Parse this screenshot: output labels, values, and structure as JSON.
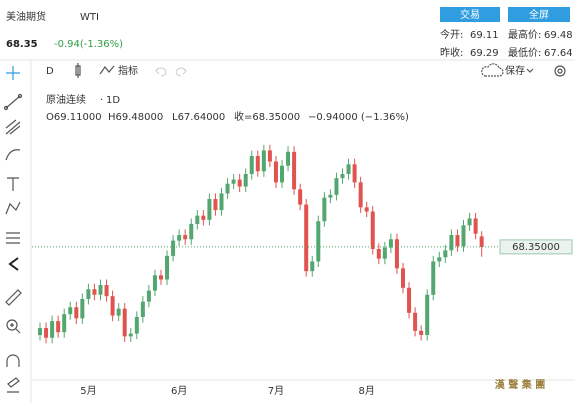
{
  "header": {
    "title": "美油期货",
    "symbol": "WTI",
    "price": "68.35",
    "change": "-0.94(-1.36%)",
    "trade_button": "交易",
    "fullscreen_button": "全屏",
    "stats": [
      {
        "label": "今开:",
        "value": "69.11"
      },
      {
        "label": "最高价:",
        "value": "69.48"
      },
      {
        "label": "昨收:",
        "value": "69.29"
      },
      {
        "label": "最低价:",
        "value": "67.64"
      }
    ]
  },
  "toolbar": {
    "interval": "D",
    "indicators": "指标",
    "save": "保存"
  },
  "legend": {
    "name": "原油连续",
    "interval": "1D",
    "open": "O69.11000",
    "high": "H69.48000",
    "low": "L67.64000",
    "close": "收=68.35000",
    "change": "−0.94000 (−1.36%)"
  },
  "watermark": "漢 聲 集 團",
  "chart_data": {
    "type": "candlestick",
    "up_color": "#53a66f",
    "down_color": "#e0534f",
    "ylim": [
      58.9,
      79.8
    ],
    "last_price_label": "68.35000",
    "categories": [
      null,
      null,
      null,
      null,
      null,
      null,
      null,
      null,
      "5月",
      null,
      null,
      null,
      null,
      null,
      null,
      null,
      null,
      null,
      null,
      null,
      null,
      null,
      null,
      "6月",
      null,
      null,
      null,
      null,
      null,
      null,
      null,
      null,
      null,
      null,
      null,
      null,
      null,
      null,
      null,
      "7月",
      null,
      null,
      null,
      null,
      null,
      null,
      null,
      null,
      null,
      null,
      null,
      null,
      null,
      null,
      "8月",
      null,
      null,
      null,
      null,
      null,
      null,
      null,
      null,
      null,
      null,
      null,
      null,
      null,
      null,
      null,
      null,
      null,
      null,
      null
    ],
    "open": [
      62.0,
      62.5,
      61.8,
      63.0,
      62.2,
      63.5,
      64.0,
      63.2,
      64.6,
      65.3,
      64.9,
      65.6,
      64.8,
      63.4,
      63.9,
      61.9,
      62.1,
      63.3,
      64.4,
      65.2,
      66.3,
      66.0,
      67.7,
      68.8,
      69.2,
      68.9,
      70.0,
      70.6,
      70.3,
      71.8,
      71.0,
      72.2,
      72.9,
      73.2,
      72.7,
      73.6,
      74.9,
      73.8,
      75.3,
      74.5,
      73.0,
      74.2,
      75.2,
      72.5,
      71.4,
      66.6,
      67.3,
      70.2,
      71.9,
      72.1,
      73.3,
      73.6,
      74.3,
      73.0,
      71.2,
      70.9,
      68.2,
      67.5,
      68.3,
      68.9,
      66.8,
      65.4,
      63.6,
      62.3,
      62.0,
      64.9,
      67.3,
      67.6,
      68.1,
      69.2,
      68.4,
      69.9,
      70.4,
      69.11
    ],
    "high": [
      62.9,
      62.9,
      63.4,
      63.4,
      63.9,
      64.4,
      64.4,
      65.0,
      65.7,
      65.7,
      66.0,
      66.0,
      65.2,
      64.3,
      64.3,
      62.5,
      63.7,
      64.8,
      65.6,
      66.7,
      66.7,
      68.1,
      69.2,
      69.6,
      69.6,
      70.4,
      71.0,
      71.0,
      72.2,
      72.2,
      72.6,
      73.3,
      73.6,
      73.6,
      74.0,
      75.3,
      75.3,
      75.7,
      75.7,
      74.9,
      74.6,
      75.6,
      75.6,
      72.9,
      71.8,
      67.7,
      70.6,
      72.3,
      72.5,
      73.7,
      74.0,
      74.7,
      74.7,
      73.4,
      71.6,
      71.3,
      68.6,
      68.7,
      69.3,
      69.3,
      67.2,
      65.8,
      64.0,
      62.7,
      65.3,
      67.7,
      68.0,
      68.5,
      69.6,
      69.6,
      70.3,
      70.8,
      70.8,
      69.48
    ],
    "low": [
      61.6,
      61.4,
      61.4,
      61.8,
      61.8,
      63.1,
      62.8,
      62.8,
      64.2,
      64.5,
      64.5,
      64.4,
      63.0,
      63.0,
      61.5,
      61.5,
      61.7,
      62.9,
      64.0,
      64.8,
      65.6,
      65.6,
      67.3,
      68.4,
      68.5,
      68.5,
      69.6,
      69.9,
      69.9,
      70.6,
      70.6,
      71.8,
      72.5,
      72.3,
      72.3,
      73.2,
      73.4,
      73.4,
      74.1,
      72.6,
      72.6,
      73.8,
      72.1,
      71.0,
      66.2,
      66.2,
      66.9,
      69.8,
      71.5,
      71.7,
      72.9,
      73.2,
      72.6,
      70.8,
      70.5,
      67.8,
      67.1,
      67.1,
      67.9,
      66.4,
      65.0,
      63.2,
      61.9,
      61.6,
      61.6,
      64.5,
      66.9,
      67.2,
      67.7,
      68.0,
      68.0,
      69.5,
      68.9,
      67.64
    ],
    "close": [
      62.5,
      61.8,
      63.0,
      62.2,
      63.5,
      64.0,
      63.2,
      64.6,
      65.3,
      64.9,
      65.6,
      64.8,
      63.4,
      63.9,
      61.9,
      62.1,
      63.3,
      64.4,
      65.2,
      66.3,
      66.0,
      67.7,
      68.8,
      69.2,
      68.9,
      70.0,
      70.6,
      70.3,
      71.8,
      71.0,
      72.2,
      72.9,
      73.2,
      72.7,
      73.6,
      74.9,
      73.8,
      75.3,
      74.5,
      73.0,
      74.2,
      75.2,
      72.5,
      71.4,
      66.6,
      67.3,
      70.2,
      71.9,
      72.1,
      73.3,
      73.6,
      74.3,
      73.0,
      71.2,
      70.9,
      68.2,
      67.5,
      68.3,
      68.9,
      66.8,
      65.4,
      63.6,
      62.3,
      62.0,
      64.9,
      67.3,
      67.6,
      68.1,
      69.2,
      68.4,
      69.9,
      70.4,
      69.3,
      68.35
    ]
  }
}
